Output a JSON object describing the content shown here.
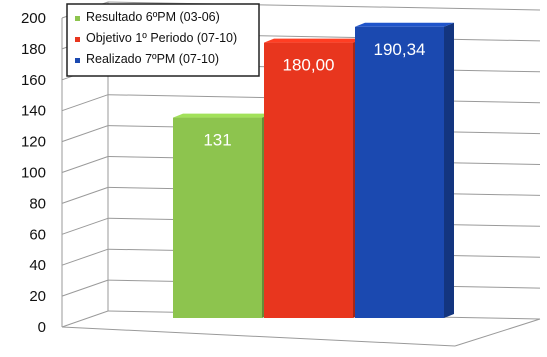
{
  "chart_data": {
    "type": "bar",
    "title": "",
    "xlabel": "",
    "ylabel": "",
    "ylim": [
      0,
      200
    ],
    "y_ticks": [
      "0",
      "20",
      "40",
      "60",
      "80",
      "100",
      "120",
      "140",
      "160",
      "180",
      "200"
    ],
    "grid": true,
    "legend_position": "top-left",
    "style": "3d-perspective",
    "series": [
      {
        "name": "Resultado 6ºPM (03-06)",
        "value": 131,
        "label": "131",
        "color": "#8DC44E"
      },
      {
        "name": "Objetivo 1º Periodo (07-10)",
        "value": 180.0,
        "label": "180,00",
        "color": "#E8361E"
      },
      {
        "name": "Realizado 7ºPM (07-10)",
        "value": 190.34,
        "label": "190,34",
        "color": "#1B49B0"
      }
    ]
  }
}
